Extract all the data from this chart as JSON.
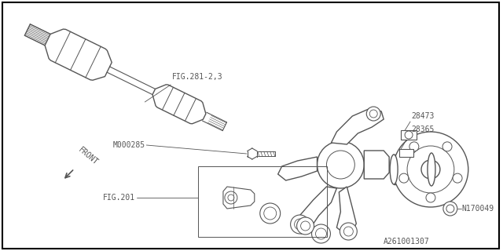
{
  "background_color": "#ffffff",
  "border_color": "#000000",
  "line_color": "#555555",
  "labels": {
    "fig281": "FIG.281-2,3",
    "m000285": "M000285",
    "fig201": "FIG.201",
    "part28473": "28473",
    "part28365": "28365",
    "n170049": "N170049",
    "front": "FRONT",
    "part_num": "A261001307"
  },
  "fontsize": 7,
  "lw_main": 1.0,
  "lw_detail": 0.7,
  "lw_leader": 0.6
}
